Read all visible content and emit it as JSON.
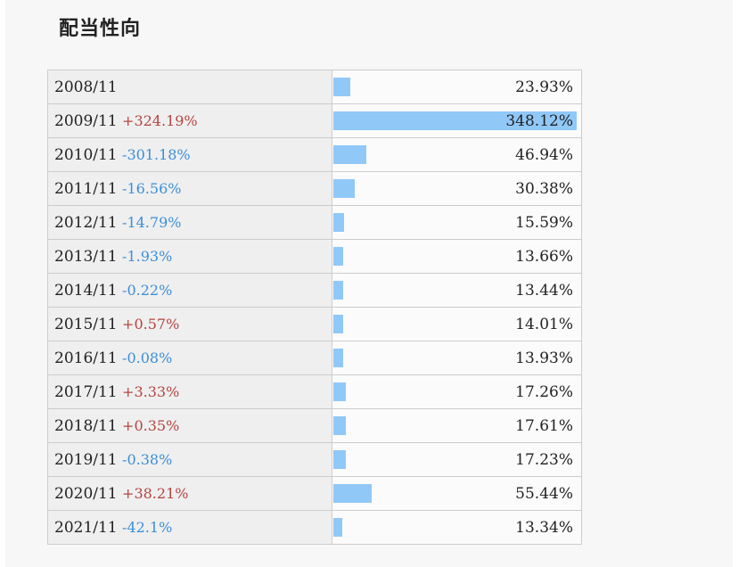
{
  "title": "配当性向",
  "colors": {
    "bar": "#90c8f8",
    "increase": "#b5443f",
    "decrease": "#3b8ed8"
  },
  "chart_data": {
    "type": "bar",
    "orientation": "horizontal",
    "value_unit": "%",
    "rows": [
      {
        "year": "2008/11",
        "change": "",
        "value": 23.93,
        "value_label": "23.93%"
      },
      {
        "year": "2009/11",
        "change": "+324.19%",
        "value": 348.12,
        "value_label": "348.12%"
      },
      {
        "year": "2010/11",
        "change": "-301.18%",
        "value": 46.94,
        "value_label": "46.94%"
      },
      {
        "year": "2011/11",
        "change": "-16.56%",
        "value": 30.38,
        "value_label": "30.38%"
      },
      {
        "year": "2012/11",
        "change": "-14.79%",
        "value": 15.59,
        "value_label": "15.59%"
      },
      {
        "year": "2013/11",
        "change": "-1.93%",
        "value": 13.66,
        "value_label": "13.66%"
      },
      {
        "year": "2014/11",
        "change": "-0.22%",
        "value": 13.44,
        "value_label": "13.44%"
      },
      {
        "year": "2015/11",
        "change": "+0.57%",
        "value": 14.01,
        "value_label": "14.01%"
      },
      {
        "year": "2016/11",
        "change": "-0.08%",
        "value": 13.93,
        "value_label": "13.93%"
      },
      {
        "year": "2017/11",
        "change": "+3.33%",
        "value": 17.26,
        "value_label": "17.26%"
      },
      {
        "year": "2018/11",
        "change": "+0.35%",
        "value": 17.61,
        "value_label": "17.61%"
      },
      {
        "year": "2019/11",
        "change": "-0.38%",
        "value": 17.23,
        "value_label": "17.23%"
      },
      {
        "year": "2020/11",
        "change": "+38.21%",
        "value": 55.44,
        "value_label": "55.44%"
      },
      {
        "year": "2021/11",
        "change": "-42.1%",
        "value": 13.34,
        "value_label": "13.34%"
      }
    ]
  }
}
